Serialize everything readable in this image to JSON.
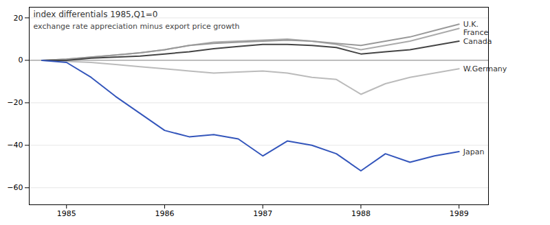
{
  "chart_data": {
    "type": "line",
    "title": "index differentials 1985,Q1=0",
    "subtitle": "exchange rate appreciation minus export price growth",
    "x": [
      1984.75,
      1985.0,
      1985.25,
      1985.5,
      1985.75,
      1986.0,
      1986.25,
      1986.5,
      1986.75,
      1987.0,
      1987.25,
      1987.5,
      1987.75,
      1988.0,
      1988.25,
      1988.5,
      1988.75,
      1989.0
    ],
    "xlim": [
      1984.62,
      1989.3
    ],
    "xticks": [
      1985,
      1986,
      1987,
      1988,
      1989
    ],
    "ylim": [
      -68,
      25
    ],
    "yticks": [
      20,
      0,
      -20,
      -40,
      -60
    ],
    "grid": true,
    "series": [
      {
        "name": "W.Germany",
        "color": "#bbbbbb",
        "values": [
          0,
          -0.5,
          -1,
          -2,
          -3,
          -4,
          -5,
          -6,
          -5.5,
          -5,
          -6,
          -8,
          -9,
          -16,
          -11,
          -8,
          -6,
          -4
        ]
      },
      {
        "name": "France",
        "color": "#aaaaaa",
        "values": [
          0,
          0.5,
          1.5,
          2.5,
          3.5,
          5,
          7,
          8.5,
          9,
          9.5,
          10,
          9,
          7.5,
          5,
          7,
          9,
          12,
          15
        ]
      },
      {
        "name": "U.K.",
        "color": "#999999",
        "values": [
          0,
          0.5,
          1.5,
          2.5,
          3.5,
          5,
          7,
          8,
          8.5,
          9,
          9.5,
          9,
          8,
          7,
          9,
          11,
          14,
          17
        ]
      },
      {
        "name": "Canada",
        "color": "#444444",
        "values": [
          0,
          0,
          1,
          1.5,
          2,
          3,
          4,
          5.5,
          6.5,
          7.5,
          7.5,
          7,
          6,
          3,
          4,
          5,
          7,
          9
        ]
      },
      {
        "name": "Japan",
        "color": "#3355bb",
        "values": [
          0,
          -1,
          -8,
          -17,
          -25,
          -33,
          -36,
          -35,
          -37,
          -45,
          -38,
          -40,
          -44,
          -52,
          -44,
          -48,
          -45,
          -43
        ]
      }
    ]
  }
}
